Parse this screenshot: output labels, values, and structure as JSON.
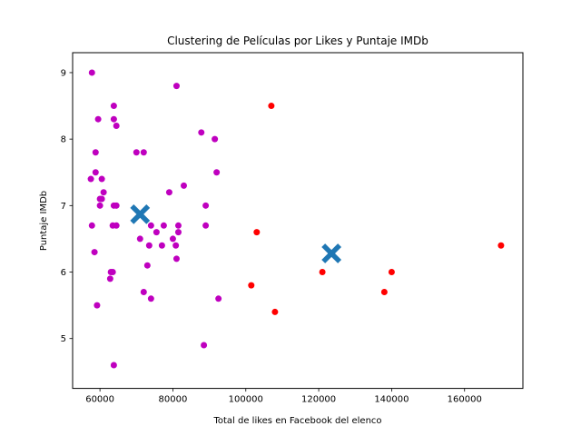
{
  "chart_data": {
    "type": "scatter",
    "title": "Clustering de Películas por Likes y Puntaje IMDb",
    "xlabel": "Total de likes en Facebook del elenco",
    "ylabel": "Puntaje IMDb",
    "xlim": [
      52500,
      176000
    ],
    "ylim": [
      4.25,
      9.3
    ],
    "xticks": [
      60000,
      80000,
      100000,
      120000,
      140000,
      160000
    ],
    "yticks": [
      5,
      6,
      7,
      8,
      9
    ],
    "grid": false,
    "legend": "none",
    "colors": {
      "cluster_1": "#bf00bf",
      "cluster_2": "#ff0000",
      "centroid": "#1f77b4"
    },
    "series": [
      {
        "cluster": "cluster_1",
        "points": [
          [
            57800,
            9.0
          ],
          [
            81000,
            8.8
          ],
          [
            63800,
            8.5
          ],
          [
            59500,
            8.3
          ],
          [
            63800,
            8.3
          ],
          [
            64500,
            8.2
          ],
          [
            87800,
            8.1
          ],
          [
            91500,
            8.0
          ],
          [
            58800,
            7.8
          ],
          [
            70000,
            7.8
          ],
          [
            72000,
            7.8
          ],
          [
            58800,
            7.5
          ],
          [
            92000,
            7.5
          ],
          [
            57500,
            7.4
          ],
          [
            60500,
            7.4
          ],
          [
            83000,
            7.3
          ],
          [
            61000,
            7.2
          ],
          [
            79000,
            7.2
          ],
          [
            60000,
            7.1
          ],
          [
            60500,
            7.1
          ],
          [
            60000,
            7.0
          ],
          [
            63800,
            7.0
          ],
          [
            64500,
            7.0
          ],
          [
            89000,
            7.0
          ],
          [
            57800,
            6.7
          ],
          [
            63500,
            6.7
          ],
          [
            64500,
            6.7
          ],
          [
            74000,
            6.7
          ],
          [
            77500,
            6.7
          ],
          [
            81500,
            6.7
          ],
          [
            89000,
            6.7
          ],
          [
            75500,
            6.6
          ],
          [
            81500,
            6.6
          ],
          [
            71000,
            6.5
          ],
          [
            80000,
            6.5
          ],
          [
            73500,
            6.4
          ],
          [
            77000,
            6.4
          ],
          [
            80800,
            6.4
          ],
          [
            58500,
            6.3
          ],
          [
            81000,
            6.2
          ],
          [
            73000,
            6.1
          ],
          [
            63000,
            6.0
          ],
          [
            63500,
            6.0
          ],
          [
            62800,
            5.9
          ],
          [
            72000,
            5.7
          ],
          [
            74000,
            5.6
          ],
          [
            92500,
            5.6
          ],
          [
            59200,
            5.5
          ],
          [
            88500,
            4.9
          ],
          [
            63800,
            4.6
          ]
        ]
      },
      {
        "cluster": "cluster_2",
        "points": [
          [
            107000,
            8.5
          ],
          [
            103000,
            6.6
          ],
          [
            170000,
            6.4
          ],
          [
            121000,
            6.0
          ],
          [
            140000,
            6.0
          ],
          [
            101500,
            5.8
          ],
          [
            138000,
            5.7
          ],
          [
            108000,
            5.4
          ]
        ]
      }
    ],
    "centroids": [
      [
        71000,
        6.87
      ],
      [
        123500,
        6.28
      ]
    ]
  }
}
